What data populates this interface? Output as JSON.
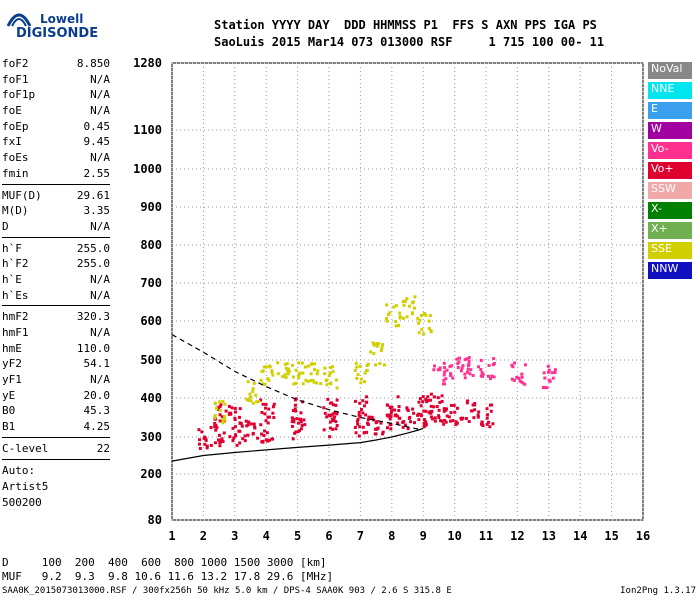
{
  "logo": {
    "top": "Lowell",
    "bottom": "DIGISONDE"
  },
  "header": {
    "line1": "Station YYYY DAY  DDD HHMMSS P1  FFS S AXN PPS IGA PS",
    "line2": "SaoLuis 2015 Mar14 073 013000 RSF     1 715 100 00- 11"
  },
  "params": {
    "group1": [
      {
        "label": "foF2",
        "value": "8.850"
      },
      {
        "label": "foF1",
        "value": "N/A"
      },
      {
        "label": "foF1p",
        "value": "N/A"
      },
      {
        "label": "foE",
        "value": "N/A"
      },
      {
        "label": "foEp",
        "value": "0.45"
      },
      {
        "label": "fxI",
        "value": "9.45"
      },
      {
        "label": "foEs",
        "value": "N/A"
      },
      {
        "label": "fmin",
        "value": "2.55"
      }
    ],
    "group2": [
      {
        "label": "MUF(D)",
        "value": "29.61"
      },
      {
        "label": "M(D)",
        "value": "3.35"
      },
      {
        "label": "D",
        "value": "N/A"
      }
    ],
    "group3": [
      {
        "label": "h`F",
        "value": "255.0"
      },
      {
        "label": "h`F2",
        "value": "255.0"
      },
      {
        "label": "h`E",
        "value": "N/A"
      },
      {
        "label": "h`Es",
        "value": "N/A"
      }
    ],
    "group4": [
      {
        "label": "hmF2",
        "value": "320.3"
      },
      {
        "label": "hmF1",
        "value": "N/A"
      },
      {
        "label": "hmE",
        "value": "110.0"
      },
      {
        "label": "yF2",
        "value": "54.1"
      },
      {
        "label": "yF1",
        "value": "N/A"
      },
      {
        "label": "yE",
        "value": "20.0"
      },
      {
        "label": "B0",
        "value": "45.3"
      },
      {
        "label": "B1",
        "value": "4.25"
      }
    ],
    "group5": [
      {
        "label": "C-level",
        "value": "22"
      }
    ]
  },
  "auto": {
    "line1": "Auto:",
    "line2": "Artist5",
    "line3": "500200"
  },
  "legend": [
    {
      "label": "NoVal",
      "color": "#888888"
    },
    {
      "label": "NNE",
      "color": "#00e5ee"
    },
    {
      "label": "E",
      "color": "#3aa0ee"
    },
    {
      "label": "W",
      "color": "#a000a0"
    },
    {
      "label": "Vo-",
      "color": "#ff3090"
    },
    {
      "label": "Vo+",
      "color": "#e00030"
    },
    {
      "label": "SSW",
      "color": "#f0a8a8"
    },
    {
      "label": "X-",
      "color": "#008000"
    },
    {
      "label": "X+",
      "color": "#70b050"
    },
    {
      "label": "SSE",
      "color": "#d0d000"
    },
    {
      "label": "NNW",
      "color": "#1010c0"
    }
  ],
  "footer": {
    "d_line": "D     100  200  400  600  800 1000 1500 3000 [km]",
    "muf_line": "MUF   9.2  9.3  9.8 10.6 11.6 13.2 17.8 29.6 [MHz]",
    "file": "SAA0K_2015073013000.RSF / 300fx256h 50 kHz 5.0 km / DPS-4 SAA0K 903 / 2.6 S 315.8 E",
    "version": "Ion2Png 1.3.17"
  },
  "chart_data": {
    "type": "scatter",
    "xlim": [
      1,
      16
    ],
    "ylim": [
      80,
      1280
    ],
    "xticks": [
      "1",
      "2",
      "3",
      "4",
      "5",
      "6",
      "7",
      "8",
      "9",
      "10",
      "11",
      "12",
      "13",
      "14",
      "15",
      "16"
    ],
    "yticks": [
      "80",
      "200",
      "300",
      "400",
      "500",
      "600",
      "700",
      "800",
      "900",
      "1000",
      "1100",
      "1280"
    ],
    "dense_traces": [
      {
        "name": "F2 ordinary trace (Vo+)",
        "color": "#e00030",
        "x": [
          2.0,
          2.5,
          3.0,
          3.5,
          4.0,
          5.0,
          6.0,
          7.0,
          7.5,
          8.0,
          8.5,
          9.0,
          9.4
        ],
        "y": [
          300,
          305,
          310,
          315,
          320,
          325,
          330,
          335,
          340,
          345,
          350,
          360,
          380
        ]
      },
      {
        "name": "F2 upper trace (Vo+)",
        "color": "#e00030",
        "x": [
          2.5,
          3.0,
          4.0,
          5.0,
          6.0,
          7.0,
          8.0,
          9.0
        ],
        "y": [
          360,
          365,
          370,
          372,
          375,
          378,
          380,
          385
        ]
      },
      {
        "name": "SSE spread",
        "color": "#d0d000",
        "x": [
          2.5,
          3.5,
          4.0,
          4.5,
          5.0,
          5.5,
          6.0,
          7.0,
          7.5,
          8.0,
          8.5,
          9.0
        ],
        "y": [
          370,
          420,
          460,
          480,
          470,
          465,
          460,
          470,
          520,
          620,
          640,
          600
        ]
      },
      {
        "name": "high-freq F layer",
        "color": "#e00030",
        "x": [
          9.5,
          10.0,
          10.5,
          11.0
        ],
        "y": [
          360,
          365,
          370,
          360
        ]
      },
      {
        "name": "high-freq upper",
        "color": "#ff3090",
        "x": [
          9.5,
          10.0,
          10.5,
          11.0,
          12.0,
          13.0
        ],
        "y": [
          470,
          480,
          485,
          480,
          470,
          460
        ]
      }
    ],
    "profile_curve": {
      "x": [
        1,
        2,
        3,
        4,
        5,
        6,
        7,
        7.5,
        8.0,
        8.5,
        8.85,
        9.0
      ],
      "y": [
        235,
        250,
        258,
        265,
        272,
        278,
        285,
        292,
        300,
        310,
        318,
        322
      ]
    },
    "dashed_curve": {
      "x": [
        1,
        2,
        3,
        4,
        5,
        6,
        7,
        8,
        8.85
      ],
      "y": [
        565,
        520,
        470,
        430,
        395,
        370,
        350,
        335,
        320
      ]
    }
  }
}
